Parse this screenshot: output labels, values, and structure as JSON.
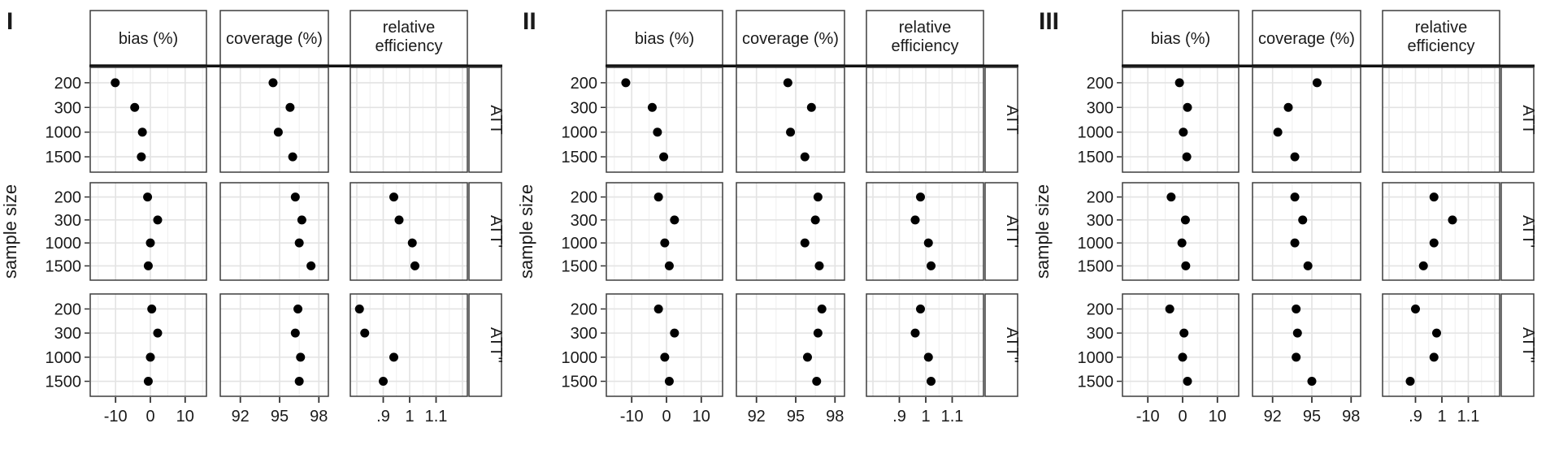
{
  "figure": {
    "ylabel": "sample size",
    "y_categories": [
      "200",
      "300",
      "1000",
      "1500"
    ],
    "row_facets": [
      "ATT",
      "ATT'",
      "ATT''"
    ],
    "column_facets": [
      "bias (%)",
      "coverage (%)",
      "relative efficiency"
    ]
  },
  "chart_data": {
    "type": "scatter",
    "description": "Dot plots of simulation results: bias (%), coverage (%) and relative efficiency by sample size (200/300/1000/1500), for estimands ATT, ATT', ATT'', in three scenarios I, II, III",
    "y_categories": [
      "200",
      "300",
      "1000",
      "1500"
    ],
    "row_facets": [
      "ATT",
      "ATT'",
      "ATT''"
    ],
    "columns": [
      {
        "key": "bias",
        "title": "bias (%)",
        "title_lines": [
          "bias (%)"
        ],
        "ticks": [
          -10,
          0,
          10
        ],
        "tick_labels": [
          "-10",
          "0",
          "10"
        ],
        "grid_major": [
          -10,
          0,
          10
        ],
        "grid_minor": [
          -15,
          -5,
          5,
          15
        ],
        "range": [
          -17.3,
          16.1
        ]
      },
      {
        "key": "coverage",
        "title": "coverage (%)",
        "title_lines": [
          "coverage (%)"
        ],
        "ticks": [
          92,
          95,
          98
        ],
        "tick_labels": [
          "92",
          "95",
          "98"
        ],
        "grid_major": [
          92,
          95,
          98
        ],
        "grid_minor": [
          93.5,
          96.5
        ],
        "range": [
          90.4,
          98.7
        ]
      },
      {
        "key": "releff",
        "title": "relative efficiency",
        "title_lines": [
          "relative",
          "efficiency"
        ],
        "ticks": [
          0.9,
          1,
          1.1
        ],
        "tick_labels": [
          ".9",
          "1",
          "1.1"
        ],
        "grid_major": [
          0.8,
          0.9,
          1,
          1.1,
          1.2
        ],
        "grid_minor": [
          0.85,
          0.95,
          1.05,
          1.15
        ],
        "range": [
          0.776,
          1.218
        ]
      }
    ],
    "panels": [
      {
        "label": "I",
        "series": {
          "bias": {
            "ATT": [
              -10.1,
              -4.5,
              -2.3,
              -2.6
            ],
            "ATT'": [
              -0.8,
              2.1,
              0.0,
              -0.6
            ],
            "ATT''": [
              0.4,
              2.1,
              0.0,
              -0.6
            ]
          },
          "coverage": {
            "ATT": [
              94.5,
              95.8,
              94.9,
              96.0
            ],
            "ATT'": [
              96.2,
              96.7,
              96.5,
              97.4
            ],
            "ATT''": [
              96.4,
              96.2,
              96.6,
              96.5
            ]
          },
          "releff": {
            "ATT": null,
            "ATT'": [
              0.94,
              0.96,
              1.01,
              1.02
            ],
            "ATT''": [
              0.81,
              0.83,
              0.94,
              0.9
            ]
          }
        }
      },
      {
        "label": "II",
        "series": {
          "bias": {
            "ATT": [
              -11.7,
              -4.1,
              -2.6,
              -0.8
            ],
            "ATT'": [
              -2.3,
              2.3,
              -0.5,
              0.8
            ],
            "ATT''": [
              -2.3,
              2.3,
              -0.5,
              0.8
            ]
          },
          "coverage": {
            "ATT": [
              94.4,
              96.2,
              94.6,
              95.7
            ],
            "ATT'": [
              96.7,
              96.5,
              95.7,
              96.8
            ],
            "ATT''": [
              97.0,
              96.7,
              95.9,
              96.6
            ]
          },
          "releff": {
            "ATT": null,
            "ATT'": [
              0.98,
              0.96,
              1.01,
              1.02
            ],
            "ATT''": [
              0.98,
              0.96,
              1.01,
              1.02
            ]
          }
        }
      },
      {
        "label": "III",
        "series": {
          "bias": {
            "ATT": [
              -0.9,
              1.4,
              0.2,
              1.2
            ],
            "ATT'": [
              -3.3,
              0.8,
              -0.2,
              0.9
            ],
            "ATT''": [
              -3.7,
              0.4,
              0.0,
              1.4
            ]
          },
          "coverage": {
            "ATT": [
              95.4,
              93.2,
              92.4,
              93.7
            ],
            "ATT'": [
              93.7,
              94.3,
              93.7,
              94.7
            ],
            "ATT''": [
              93.8,
              93.9,
              93.8,
              95.0
            ]
          },
          "releff": {
            "ATT": null,
            "ATT'": [
              0.97,
              1.04,
              0.97,
              0.93
            ],
            "ATT''": [
              0.9,
              0.98,
              0.97,
              0.88
            ]
          }
        }
      }
    ],
    "style": {
      "point_color": "#000000",
      "grid_major_color": "#e3e3e3",
      "grid_minor_color": "#efefef",
      "border_color": "#3d3d3d",
      "thick_rule_color": "#111111",
      "tick_label_color": "#404040"
    },
    "layout_hints": {
      "grid": true,
      "legend": false,
      "panel_background": "#ffffff"
    }
  }
}
